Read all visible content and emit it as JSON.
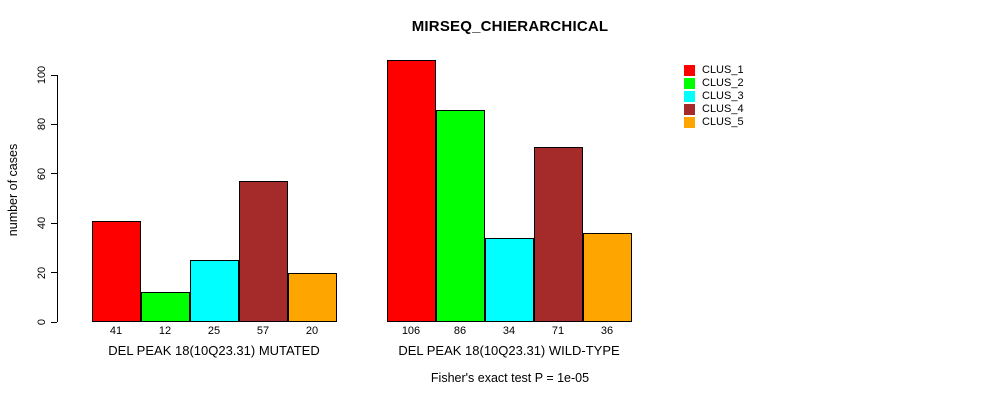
{
  "title": "MIRSEQ_CHIERARCHICAL",
  "footnote": "Fisher's exact test P = 1e-05",
  "chart_data": {
    "type": "bar",
    "title": "MIRSEQ_CHIERARCHICAL",
    "xlabel": "",
    "ylabel": "number of cases",
    "ylim": [
      0,
      110
    ],
    "yticks": [
      0,
      20,
      40,
      60,
      80,
      100
    ],
    "grid": false,
    "legend_position": "top-right",
    "bar_value_labels": true,
    "categories": [
      "DEL PEAK 18(10Q23.31) MUTATED",
      "DEL PEAK 18(10Q23.31) WILD-TYPE"
    ],
    "series": [
      {
        "name": "CLUS_1",
        "color": "#ff0000",
        "values": [
          41,
          106
        ]
      },
      {
        "name": "CLUS_2",
        "color": "#00ff00",
        "values": [
          12,
          86
        ]
      },
      {
        "name": "CLUS_3",
        "color": "#00ffff",
        "values": [
          25,
          34
        ]
      },
      {
        "name": "CLUS_4",
        "color": "#a52a2a",
        "values": [
          57,
          71
        ]
      },
      {
        "name": "CLUS_5",
        "color": "#ffa500",
        "values": [
          20,
          36
        ]
      }
    ],
    "footnote": "Fisher's exact test P = 1e-05"
  }
}
